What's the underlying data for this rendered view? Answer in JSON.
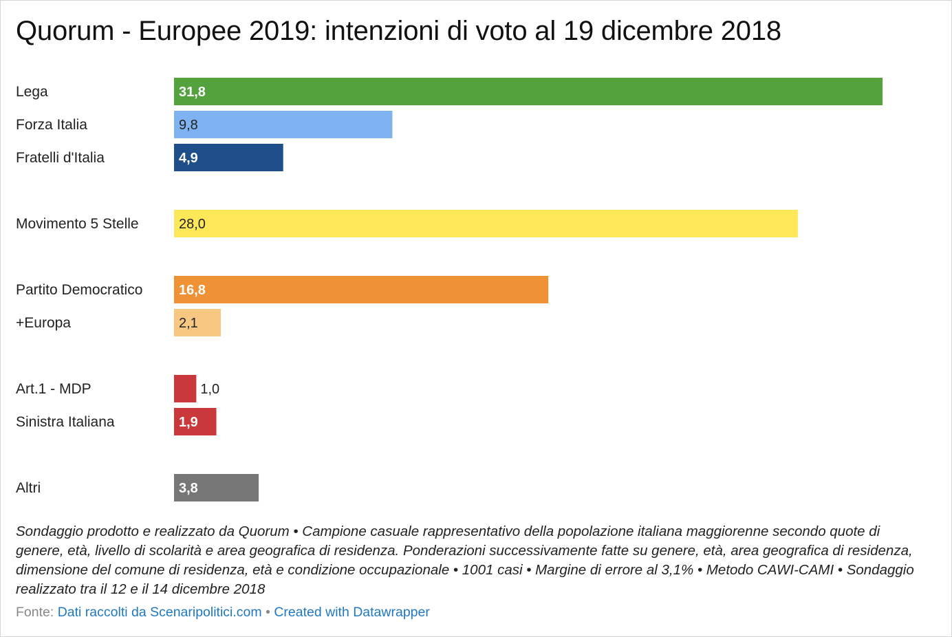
{
  "title": "Quorum - Europee 2019: intenzioni di voto al 19 dicembre 2018",
  "chart_data": {
    "type": "bar",
    "orientation": "horizontal",
    "categories": [
      "Lega",
      "Forza Italia",
      "Fratelli d'Italia",
      "Movimento 5 Stelle",
      "Partito Democratico",
      "+Europa",
      "Art.1 - MDP",
      "Sinistra Italiana",
      "Altri"
    ],
    "values": [
      31.8,
      9.8,
      4.9,
      28.0,
      16.8,
      2.1,
      1.0,
      1.9,
      3.8
    ],
    "value_labels": [
      "31,8",
      "9,8",
      "4,9",
      "28,0",
      "16,8",
      "2,1",
      "1,0",
      "1,9",
      "3,8"
    ],
    "colors": [
      "#54a23d",
      "#7fb2f0",
      "#1e4f8a",
      "#ffe75a",
      "#ee9235",
      "#f8c883",
      "#c9383a",
      "#c9383a",
      "#777777"
    ],
    "value_label_colors": [
      "#ffffff",
      "#222222",
      "#ffffff",
      "#222222",
      "#ffffff",
      "#222222",
      "#222222",
      "#ffffff",
      "#ffffff"
    ],
    "value_label_outside": [
      false,
      false,
      false,
      false,
      false,
      false,
      true,
      false,
      false
    ],
    "groups": [
      [
        0,
        1,
        2
      ],
      [
        3
      ],
      [
        4,
        5
      ],
      [
        6,
        7
      ],
      [
        8
      ]
    ],
    "xlim": [
      0,
      31.8
    ],
    "grid": false,
    "legend": "none",
    "xlabel": "",
    "ylabel": ""
  },
  "notes": "Sondaggio prodotto e realizzato da Quorum • Campione casuale rappresentativo della popolazione italiana maggiorenne secondo quote di genere, età, livello di scolarità e area geografica di residenza. Ponderazioni successivamente fatte su genere, età, area geografica di residenza, dimensione del comune di residenza, età e condizione occupazionale • 1001 casi • Margine di errore al 3,1% • Metodo CAWI-CAMI • Sondaggio realizzato tra il 12 e il 14 dicembre 2018",
  "footer": {
    "source_prefix": "Fonte: ",
    "source_link": "Dati raccolti da Scenaripolitici.com",
    "separator": " • ",
    "credit_link": "Created with Datawrapper"
  }
}
